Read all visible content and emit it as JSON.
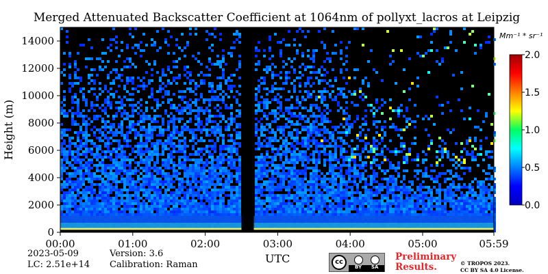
{
  "chart_data": {
    "type": "heatmap",
    "title": "Merged Attenuated Backscatter Coefficient at 1064nm of pollyxt_lacros at Leipzig",
    "ylabel": "Height (m)",
    "xlabel": "UTC",
    "ylim": [
      0,
      15000
    ],
    "xlim_hours": [
      0,
      5.983
    ],
    "y_ticks": [
      0,
      2000,
      4000,
      6000,
      8000,
      10000,
      12000,
      14000
    ],
    "y_tick_labels": [
      "0",
      "2000",
      "4000",
      "6000",
      "8000",
      "10000",
      "12000",
      "14000"
    ],
    "x_ticks_hours": [
      0,
      1,
      2,
      3,
      4,
      5,
      5.983
    ],
    "x_tick_labels": [
      "00:00",
      "01:00",
      "02:00",
      "03:00",
      "04:00",
      "05:00",
      "05:59"
    ],
    "data_gap_hours": [
      2.5,
      2.67
    ],
    "colorbar": {
      "unit": "Mm⁻¹ * sr⁻¹",
      "range": [
        0.0,
        2.0
      ],
      "ticks": [
        0.0,
        0.5,
        1.0,
        1.5,
        2.0
      ],
      "tick_labels": [
        "0.0",
        "0.5",
        "1.0",
        "1.5",
        "2.0"
      ],
      "colormap": "jet"
    },
    "grid": false
  },
  "info": {
    "date": "2023-05-09",
    "lc": "LC: 2.51e+14",
    "version": "Version: 3.6",
    "calibration": "Calibration: Raman"
  },
  "license": {
    "cc_text": "cc",
    "by": "BY",
    "sa": "SA",
    "preliminary_line1": "Preliminary",
    "preliminary_line2": "Results.",
    "copyright_line1": "© TROPOS 2023.",
    "copyright_line2": "CC BY SA 4.0 License."
  },
  "colors": {
    "background_signal": "#000000",
    "low": "#0a3cd8",
    "preliminary": "#e8262a"
  }
}
